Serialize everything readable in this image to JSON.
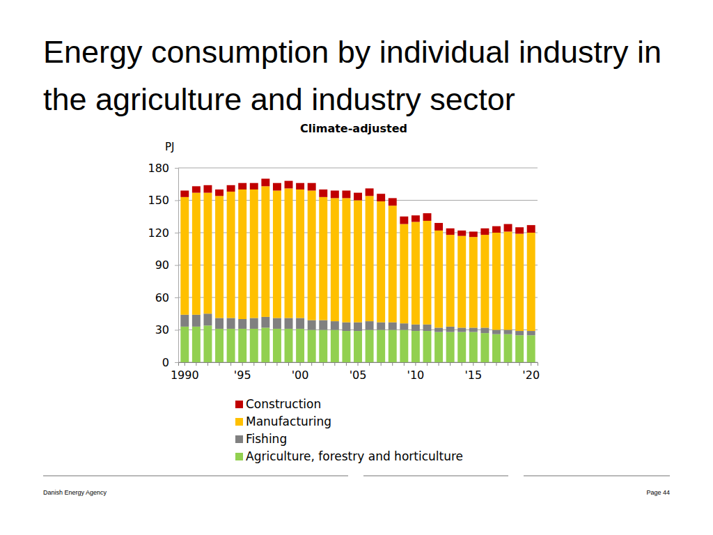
{
  "chart_data": {
    "type": "bar",
    "title": "Energy consumption by individual industry in the agriculture and industry sector",
    "subtitle": "Climate-adjusted",
    "ylabel": "PJ",
    "stacked": true,
    "grid": true,
    "legend": "bottom",
    "categories": [
      "1990",
      null,
      null,
      null,
      null,
      "'95",
      null,
      null,
      null,
      null,
      "'00",
      null,
      null,
      null,
      null,
      "'05",
      null,
      null,
      null,
      null,
      "'10",
      null,
      null,
      null,
      null,
      "'15",
      null,
      null,
      null,
      null,
      "'20"
    ],
    "ylim": [
      0,
      180
    ],
    "yticks": [
      0,
      30,
      60,
      90,
      120,
      150,
      180
    ],
    "series": [
      {
        "name": "Agriculture, forestry and horticulture",
        "color": "#92d050",
        "values": [
          33,
          33,
          34,
          31,
          31,
          31,
          31,
          32,
          31,
          31,
          31,
          30,
          30,
          30,
          29,
          29,
          30,
          30,
          30,
          30,
          29,
          29,
          28,
          28,
          28,
          28,
          27,
          26,
          26,
          25,
          25
        ]
      },
      {
        "name": "Fishing",
        "color": "#808080",
        "values": [
          11,
          11,
          11,
          10,
          10,
          9,
          10,
          10,
          10,
          10,
          10,
          9,
          9,
          8,
          8,
          8,
          8,
          7,
          7,
          6,
          6,
          6,
          4,
          5,
          4,
          4,
          5,
          4,
          4,
          4,
          4
        ]
      },
      {
        "name": "Manufacturing",
        "color": "#ffc000",
        "values": [
          109,
          113,
          112,
          113,
          117,
          120,
          119,
          121,
          118,
          120,
          119,
          120,
          114,
          114,
          115,
          113,
          116,
          112,
          108,
          92,
          95,
          96,
          90,
          85,
          85,
          84,
          86,
          90,
          91,
          90,
          91
        ]
      },
      {
        "name": "Construction",
        "color": "#c00000",
        "values": [
          6,
          6,
          7,
          6,
          6,
          6,
          6,
          7,
          7,
          7,
          6,
          7,
          7,
          7,
          7,
          7,
          7,
          7,
          7,
          7,
          6,
          7,
          7,
          6,
          5,
          5,
          6,
          6,
          7,
          6,
          7
        ]
      }
    ]
  },
  "footer": {
    "left": "Danish Energy Agency",
    "right": "Page 44"
  }
}
